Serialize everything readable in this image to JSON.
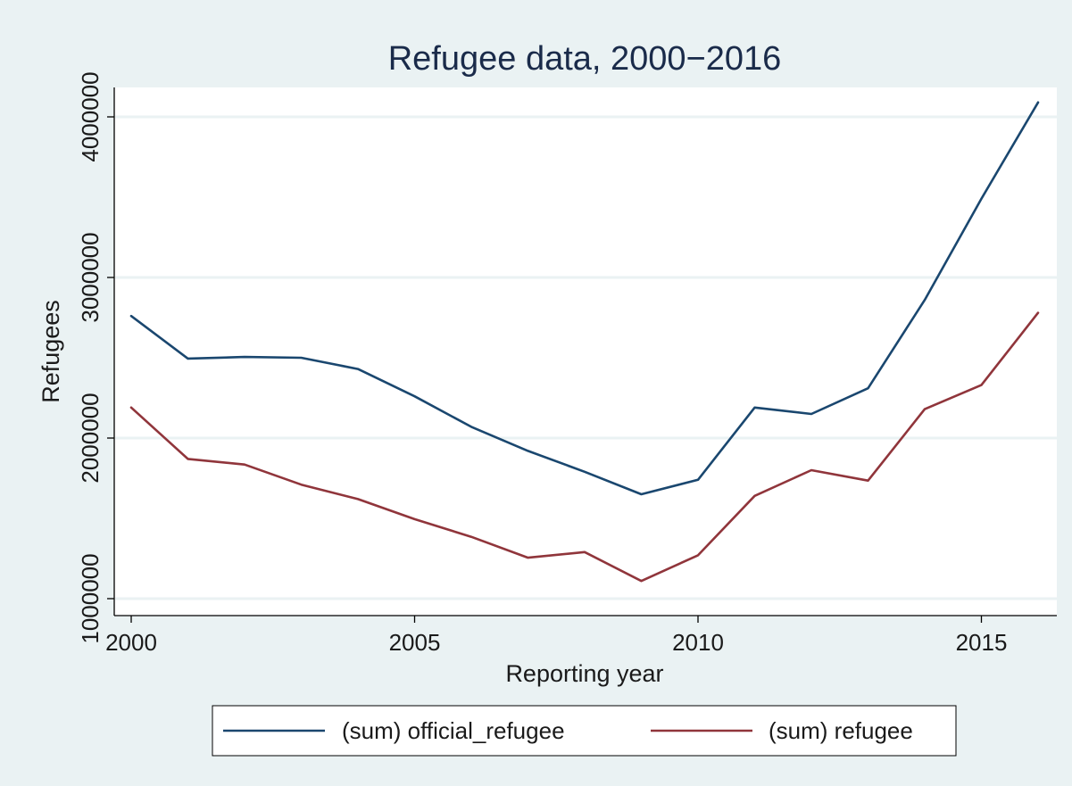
{
  "chart_data": {
    "type": "line",
    "title": "Refugee data, 2000−2016",
    "xlabel": "Reporting year",
    "ylabel": "Refugees",
    "x": [
      2000,
      2001,
      2002,
      2003,
      2004,
      2005,
      2006,
      2007,
      2008,
      2009,
      2010,
      2011,
      2012,
      2013,
      2014,
      2015,
      2016
    ],
    "xticks": [
      2000,
      2005,
      2010,
      2015
    ],
    "xtick_labels": [
      "2000",
      "2005",
      "2010",
      "2015"
    ],
    "yticks": [
      1000000,
      2000000,
      3000000,
      4000000
    ],
    "ytick_labels": [
      "1000000",
      "2000000",
      "3000000",
      "4000000"
    ],
    "xlim": [
      2000,
      2016
    ],
    "ylim": [
      1000000,
      4000000
    ],
    "grid": true,
    "legend_position": "bottom",
    "series": [
      {
        "name": "(sum) official_refugee",
        "color": "#1a476f",
        "values": [
          2760000,
          2495000,
          2505000,
          2500000,
          2430000,
          2260000,
          2070000,
          1920000,
          1790000,
          1650000,
          1740000,
          2190000,
          2150000,
          2310000,
          2860000,
          3490000,
          4090000
        ]
      },
      {
        "name": "(sum) refugee",
        "color": "#90353b",
        "values": [
          2190000,
          1870000,
          1835000,
          1710000,
          1620000,
          1495000,
          1385000,
          1255000,
          1290000,
          1110000,
          1270000,
          1640000,
          1800000,
          1735000,
          2180000,
          2330000,
          2780000
        ]
      }
    ]
  }
}
